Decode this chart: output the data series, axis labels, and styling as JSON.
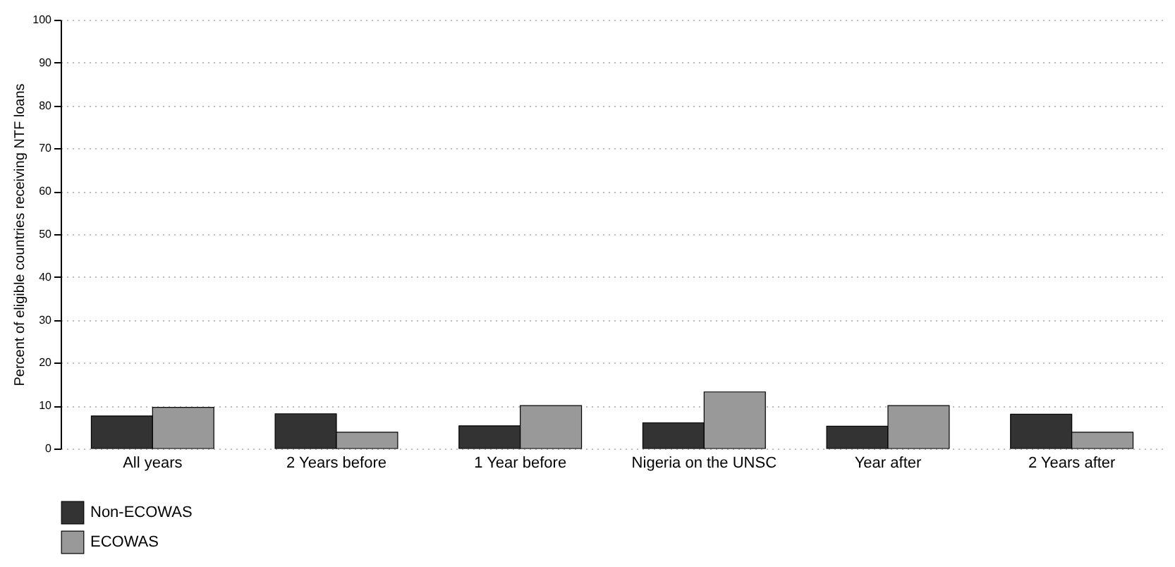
{
  "chart_data": {
    "type": "bar",
    "ylabel": "Percent of eligible countries receiving NTF loans",
    "categories": [
      "All years",
      "2 Years before",
      "1 Year before",
      "Nigeria on the UNSC",
      "Year after",
      "2 Years after"
    ],
    "series": [
      {
        "name": "Non-ECOWAS",
        "color": "#333333",
        "values": [
          7.6,
          8.1,
          5.3,
          6.0,
          5.2,
          8.0
        ]
      },
      {
        "name": "ECOWAS",
        "color": "#999999",
        "values": [
          9.6,
          3.8,
          10.0,
          13.2,
          10.0,
          3.8
        ]
      }
    ],
    "ylim": [
      0,
      100
    ],
    "yticks": [
      0,
      10,
      20,
      30,
      40,
      50,
      60,
      70,
      80,
      90,
      100
    ],
    "grid": "y",
    "legend": "bottom"
  }
}
